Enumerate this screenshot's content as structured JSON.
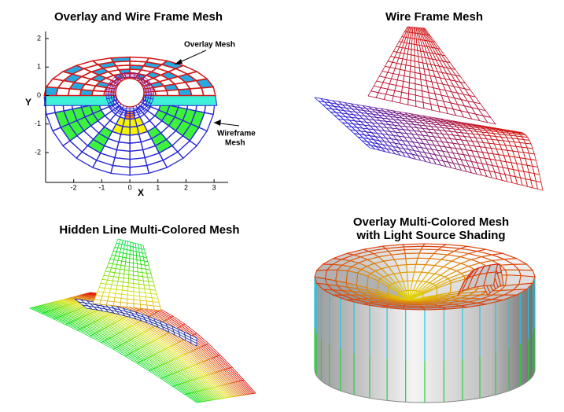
{
  "panels": [
    {
      "title": [
        "Overlay and Wire Frame Mesh"
      ],
      "x_label": "X",
      "y_label": "Y",
      "xlim": [
        -3,
        3.5
      ],
      "ylim": [
        -3.05,
        2.25
      ],
      "xticks": [
        -2,
        -1,
        0,
        1,
        2,
        3
      ],
      "yticks": [
        2,
        1,
        0,
        -1,
        -2
      ],
      "annotations": [
        [
          "Overlay Mesh"
        ],
        [
          "Wireframe",
          "Mesh"
        ]
      ]
    },
    {
      "title": [
        "Wire Frame Mesh"
      ]
    },
    {
      "title": [
        "Hidden Line Multi-Colored Mesh"
      ]
    },
    {
      "title": [
        "Overlay Multi-Colored Mesh",
        "with Light Source Shading"
      ]
    }
  ]
}
